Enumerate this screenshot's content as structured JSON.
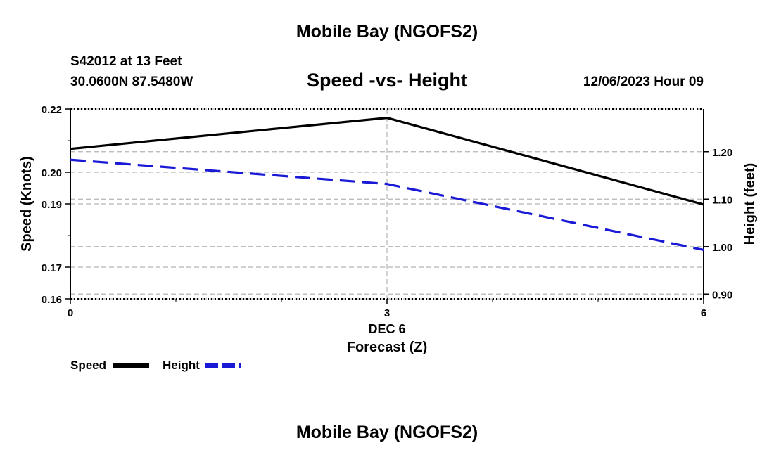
{
  "header": {
    "title": "Mobile Bay (NGOFS2)",
    "station": "S42012 at 13 Feet",
    "coords": "30.0600N  87.5480W",
    "subtitle": "Speed -vs- Height",
    "datetime": "12/06/2023 Hour 09"
  },
  "footer": {
    "title": "Mobile Bay (NGOFS2)"
  },
  "colors": {
    "speed": "#000000",
    "height": "#1a1ad6",
    "grid": "#b4b4b4"
  },
  "chart_data": {
    "type": "line",
    "title": "Speed -vs- Height",
    "x": [
      0,
      3,
      6
    ],
    "xlim": [
      0,
      6
    ],
    "x_ticks": [
      "0",
      "3",
      "6"
    ],
    "x_date_label": "DEC 6",
    "xlabel": "Forecast (Z)",
    "ylabel_left": "Speed (Knots)",
    "ylabel_right": "Height (feet)",
    "y_left_range": [
      0.16,
      0.22
    ],
    "y_left_ticks": [
      "0.22",
      "0.20",
      "0.19",
      "0.17",
      "0.16"
    ],
    "y_right_range": [
      0.89,
      1.29
    ],
    "y_right_ticks": [
      "1.20",
      "1.10",
      "1.00",
      "0.90"
    ],
    "series": [
      {
        "name": "Speed",
        "axis": "left",
        "style": "solid",
        "values": [
          0.2074,
          0.2172,
          0.1898
        ]
      },
      {
        "name": "Height",
        "axis": "right",
        "style": "dashed",
        "values": [
          1.183,
          1.132,
          0.993
        ]
      }
    ],
    "legend": [
      "Speed",
      "Height"
    ],
    "legend_position": "bottom-left"
  }
}
